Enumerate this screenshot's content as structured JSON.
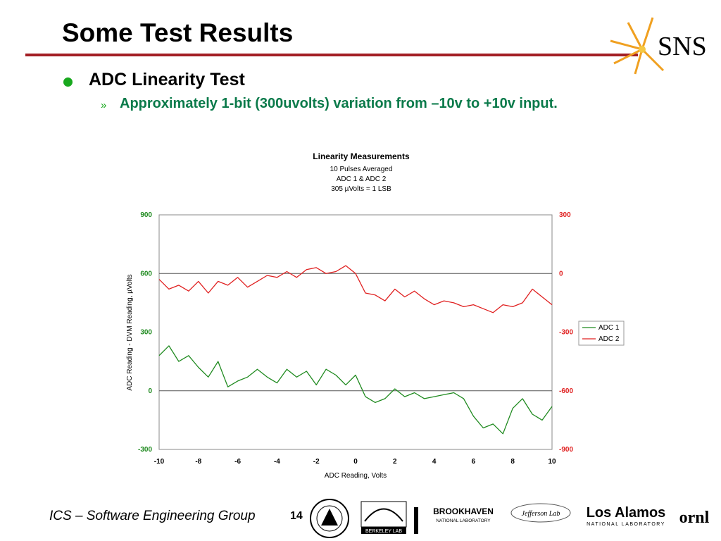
{
  "slide": {
    "title": "Some Test Results",
    "bullet1": "ADC Linearity Test",
    "sub_marker": "»",
    "bullet2": "Approximately 1-bit (300uvolts) variation from –10v to +10v input.",
    "footer": "ICS – Software Engineering Group",
    "page_number": "14",
    "rule_color": "#a31f24",
    "bullet_color": "#18a81e",
    "sub_text_color": "#0a7a4a"
  },
  "logos": {
    "sns": "SNS",
    "brookhaven_line1": "BROOKHAVEN",
    "brookhaven_line2": "NATIONAL LABORATORY",
    "berkeley": "BERKELEY LAB",
    "jefferson": "Jefferson Lab",
    "los_alamos_line1": "Los Alamos",
    "los_alamos_line2": "NATIONAL LABORATORY",
    "ornl": "ornl"
  },
  "chart_data": {
    "type": "line",
    "title": "Linearity Measurements",
    "subtitles": [
      "10 Pulses Averaged",
      "ADC 1 &  ADC 2",
      "305 µVolts = 1 LSB"
    ],
    "xlabel": "ADC Reading, Volts",
    "ylabel_left": "ADC Reading - DVM Reading, µVolts",
    "xlim": [
      -10,
      10
    ],
    "x_ticks": [
      "-10",
      "-8",
      "-6",
      "-4",
      "-2",
      "0",
      "2",
      "4",
      "6",
      "8",
      "10"
    ],
    "y_left_lim": [
      -300,
      900
    ],
    "y_left_ticks": [
      "900",
      "600",
      "300",
      "0",
      "-300"
    ],
    "y_right_lim": [
      -900,
      300
    ],
    "y_right_ticks": [
      "300",
      "0",
      "-300",
      "-600",
      "-900"
    ],
    "gridlines_y": [
      600,
      0
    ],
    "legend_position": "right",
    "series": [
      {
        "name": "ADC 1",
        "color": "#1f8a1f",
        "axis": "left",
        "x": [
          -10,
          -9.5,
          -9,
          -8.5,
          -8,
          -7.5,
          -7,
          -6.5,
          -6,
          -5.5,
          -5,
          -4.5,
          -4,
          -3.5,
          -3,
          -2.5,
          -2,
          -1.5,
          -1,
          -0.5,
          0,
          0.5,
          1,
          1.5,
          2,
          2.5,
          3,
          3.5,
          4,
          4.5,
          5,
          5.5,
          6,
          6.5,
          7,
          7.5,
          8,
          8.5,
          9,
          9.5,
          10
        ],
        "y": [
          180,
          230,
          150,
          180,
          120,
          70,
          150,
          20,
          50,
          70,
          110,
          70,
          40,
          110,
          70,
          100,
          30,
          110,
          80,
          30,
          80,
          -30,
          -60,
          -40,
          10,
          -30,
          -10,
          -40,
          -30,
          -20,
          -10,
          -40,
          -130,
          -190,
          -170,
          -220,
          -90,
          -40,
          -120,
          -150,
          -80
        ]
      },
      {
        "name": "ADC 2",
        "color": "#e02020",
        "axis": "right",
        "x": [
          -10,
          -9.5,
          -9,
          -8.5,
          -8,
          -7.5,
          -7,
          -6.5,
          -6,
          -5.5,
          -5,
          -4.5,
          -4,
          -3.5,
          -3,
          -2.5,
          -2,
          -1.5,
          -1,
          -0.5,
          0,
          0.5,
          1,
          1.5,
          2,
          2.5,
          3,
          3.5,
          4,
          4.5,
          5,
          5.5,
          6,
          6.5,
          7,
          7.5,
          8,
          8.5,
          9,
          9.5,
          10
        ],
        "y": [
          -30,
          -80,
          -60,
          -90,
          -40,
          -100,
          -40,
          -60,
          -20,
          -70,
          -40,
          -10,
          -20,
          10,
          -20,
          20,
          30,
          0,
          10,
          40,
          0,
          -100,
          -110,
          -140,
          -80,
          -120,
          -90,
          -130,
          -160,
          -140,
          -150,
          -170,
          -160,
          -180,
          -200,
          -160,
          -170,
          -150,
          -80,
          -120,
          -160
        ]
      }
    ]
  }
}
